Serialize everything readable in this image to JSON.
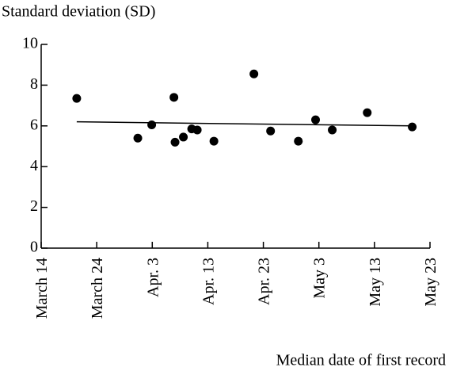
{
  "chart_data": {
    "type": "scatter",
    "ylabel": "Standard deviation (SD)",
    "xlabel": "Median date of first record",
    "x": [
      6.4,
      17.4,
      19.9,
      23.9,
      24.1,
      25.6,
      27.1,
      28.1,
      31.1,
      38.3,
      41.3,
      46.3,
      49.4,
      52.4,
      58.7,
      66.8
    ],
    "values": [
      7.35,
      5.4,
      6.05,
      7.4,
      5.2,
      5.45,
      5.85,
      5.8,
      5.25,
      8.55,
      5.75,
      5.25,
      6.3,
      5.8,
      6.65,
      5.95
    ],
    "color": "#000000",
    "trend": {
      "x": [
        6.4,
        66.8
      ],
      "values": [
        6.2,
        6.0
      ]
    },
    "xlim": [
      0,
      70
    ],
    "xticks": [
      {
        "value": 0,
        "label": "March 14"
      },
      {
        "value": 10,
        "label": "March 24"
      },
      {
        "value": 20,
        "label": "Apr. 3"
      },
      {
        "value": 30,
        "label": "Apr. 13"
      },
      {
        "value": 40,
        "label": "Apr. 23"
      },
      {
        "value": 50,
        "label": "May 3"
      },
      {
        "value": 60,
        "label": "May 13"
      },
      {
        "value": 70,
        "label": "May 23"
      }
    ],
    "ylim": [
      0,
      10
    ],
    "yticks": [
      0,
      2,
      4,
      6,
      8,
      10
    ]
  }
}
